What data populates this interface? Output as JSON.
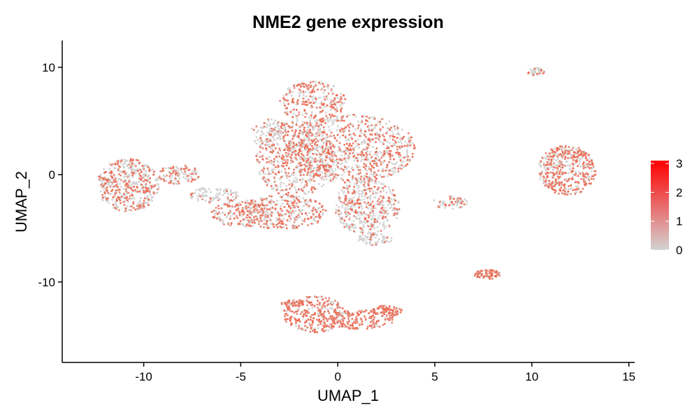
{
  "chart_data": {
    "type": "scatter",
    "title": "NME2 gene expression",
    "xlabel": "UMAP_1",
    "ylabel": "UMAP_2",
    "xlim": [
      -14.2,
      15.3
    ],
    "ylim": [
      -17.5,
      12.5
    ],
    "x_ticks": [
      -10,
      -5,
      0,
      5,
      10,
      15
    ],
    "x_tick_labels": [
      "-10",
      "-5",
      "0",
      "5",
      "10",
      "15"
    ],
    "y_ticks": [
      -10,
      0,
      10
    ],
    "y_tick_labels": [
      "-10",
      "0",
      "10"
    ],
    "grid": false,
    "legend": {
      "position": "right",
      "type": "colorbar",
      "min": 0,
      "max": 3.1,
      "ticks": [
        0,
        1,
        2,
        3
      ],
      "tick_labels": [
        "0",
        "1",
        "2",
        "3"
      ],
      "low_color": "#d3d3d3",
      "high_color": "#ff0000"
    },
    "clusters": [
      {
        "name": "",
        "cx": 0.7,
        "cy": 2.4,
        "rx": 3.3,
        "ry": 3.2,
        "n": 900,
        "expr_frac": 0.5
      },
      {
        "name": "",
        "cx": -2.2,
        "cy": 1.5,
        "rx": 2.0,
        "ry": 3.6,
        "n": 550,
        "expr_frac": 0.5
      },
      {
        "name": "",
        "cx": -1.3,
        "cy": 6.8,
        "rx": 1.7,
        "ry": 1.9,
        "n": 250,
        "expr_frac": 0.55
      },
      {
        "name": "",
        "cx": -3.6,
        "cy": 3.8,
        "rx": 0.9,
        "ry": 1.4,
        "n": 90,
        "expr_frac": 0.2
      },
      {
        "name": "",
        "cx": 1.5,
        "cy": -3.0,
        "rx": 1.7,
        "ry": 2.6,
        "n": 420,
        "expr_frac": 0.35
      },
      {
        "name": "",
        "cx": -2.8,
        "cy": -3.5,
        "rx": 2.2,
        "ry": 1.6,
        "n": 320,
        "expr_frac": 0.5
      },
      {
        "name": "",
        "cx": -5.0,
        "cy": -3.6,
        "rx": 1.5,
        "ry": 1.3,
        "n": 190,
        "expr_frac": 0.55
      },
      {
        "name": "",
        "cx": -10.8,
        "cy": -1.0,
        "rx": 1.6,
        "ry": 2.5,
        "n": 480,
        "expr_frac": 0.45
      },
      {
        "name": "",
        "cx": -8.2,
        "cy": 0.0,
        "rx": 1.1,
        "ry": 0.9,
        "n": 120,
        "expr_frac": 0.5
      },
      {
        "name": "",
        "cx": -6.4,
        "cy": -1.9,
        "rx": 1.3,
        "ry": 0.7,
        "n": 90,
        "expr_frac": 0.15
      },
      {
        "name": "",
        "cx": 1.9,
        "cy": -6.0,
        "rx": 0.9,
        "ry": 0.6,
        "n": 70,
        "expr_frac": 0.15
      },
      {
        "name": "",
        "cx": -1.2,
        "cy": -13.0,
        "rx": 1.6,
        "ry": 1.7,
        "n": 300,
        "expr_frac": 0.8
      },
      {
        "name": "",
        "cx": 1.2,
        "cy": -13.5,
        "rx": 1.7,
        "ry": 0.9,
        "n": 160,
        "expr_frac": 0.8
      },
      {
        "name": "",
        "cx": 2.5,
        "cy": -12.7,
        "rx": 0.8,
        "ry": 0.5,
        "n": 90,
        "expr_frac": 0.9
      },
      {
        "name": "",
        "cx": -2.3,
        "cy": -12.0,
        "rx": 0.6,
        "ry": 0.3,
        "n": 45,
        "expr_frac": 0.85
      },
      {
        "name": "",
        "cx": 11.8,
        "cy": 0.4,
        "rx": 1.5,
        "ry": 2.3,
        "n": 460,
        "expr_frac": 0.55
      },
      {
        "name": "",
        "cx": 7.7,
        "cy": -9.3,
        "rx": 0.7,
        "ry": 0.45,
        "n": 80,
        "expr_frac": 0.85
      },
      {
        "name": "",
        "cx": 10.2,
        "cy": 9.6,
        "rx": 0.45,
        "ry": 0.35,
        "n": 45,
        "expr_frac": 0.25
      },
      {
        "name": "",
        "cx": 5.8,
        "cy": -2.6,
        "rx": 0.9,
        "ry": 0.6,
        "n": 60,
        "expr_frac": 0.35
      }
    ]
  }
}
